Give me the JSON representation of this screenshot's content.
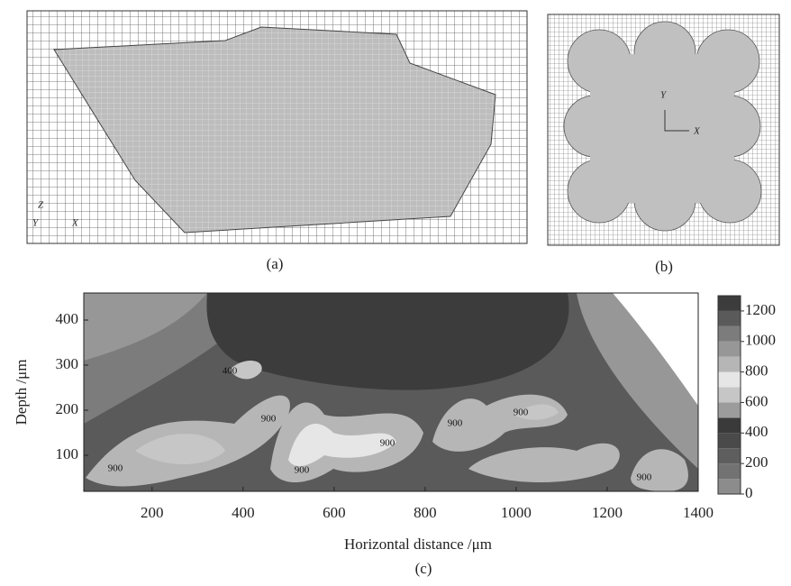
{
  "panels": {
    "a": {
      "label": "(a)",
      "axes": [
        "Z",
        "Y",
        "X"
      ]
    },
    "b": {
      "label": "(b)",
      "axes": [
        "Y",
        "X"
      ]
    }
  },
  "chart_data": {
    "type": "contour",
    "label": "(c)",
    "x_label": "Horizontal distance /μm",
    "y_label": "Depth /μm",
    "xlim": [
      50,
      1400
    ],
    "ylim": [
      20,
      460
    ],
    "xticks": [
      200,
      400,
      600,
      800,
      1000,
      1200,
      1400
    ],
    "yticks": [
      100,
      200,
      300,
      400
    ],
    "colorbar": {
      "levels": [
        0,
        100,
        200,
        300,
        400,
        500,
        600,
        700,
        800,
        900,
        1000,
        1100,
        1200,
        1300
      ],
      "colors": [
        "#8c8c8c",
        "#727272",
        "#5e5e5e",
        "#4a4a4a",
        "#3a3a3a",
        "#9c9c9c",
        "#c6c6c6",
        "#e6e6e6",
        "#b6b6b6",
        "#979797",
        "#7c7c7c",
        "#5a5a5a",
        "#3c3c3c"
      ],
      "ticks": [
        0,
        200,
        400,
        600,
        800,
        1000,
        1200
      ]
    },
    "contour_labels": [
      400,
      900,
      900,
      900,
      900,
      900,
      900,
      900
    ]
  }
}
